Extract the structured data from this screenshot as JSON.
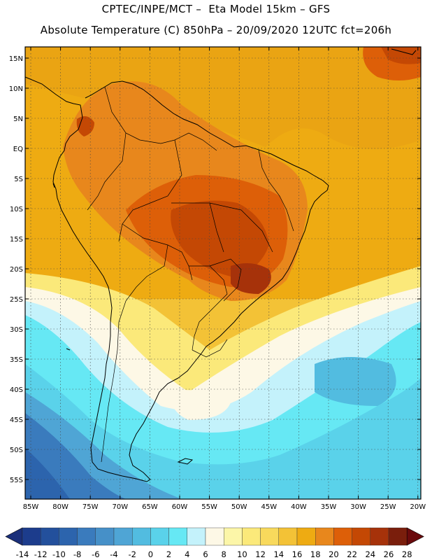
{
  "title_line1": "CPTEC/INPE/MCT –  Eta Model 15km – GFS",
  "title_line2": "Absolute Temperature (C) 850hPa – 20/09/2020 12UTC fct=206h",
  "lat_ticks": [
    "15N",
    "10N",
    "5N",
    "EQ",
    "5S",
    "10S",
    "15S",
    "20S",
    "25S",
    "30S",
    "35S",
    "40S",
    "45S",
    "50S",
    "55S"
  ],
  "lon_ticks": [
    "85W",
    "80W",
    "75W",
    "70W",
    "65W",
    "60W",
    "55W",
    "50W",
    "45W",
    "40W",
    "35W",
    "30W",
    "25W",
    "20W"
  ],
  "colorbar": {
    "labels": [
      "-14",
      "-12",
      "-10",
      "-8",
      "-6",
      "-4",
      "-2",
      "0",
      "2",
      "4",
      "6",
      "8",
      "10",
      "12",
      "14",
      "16",
      "18",
      "20",
      "22",
      "24",
      "26",
      "28"
    ],
    "colors": [
      "#1c3c8c",
      "#23509c",
      "#2c64ad",
      "#3a7bbd",
      "#4690c8",
      "#4fa5d5",
      "#52bce0",
      "#5ad2ea",
      "#66e8f4",
      "#c4f2fb",
      "#fdf8e6",
      "#fcf6a8",
      "#fbe97a",
      "#f8d95c",
      "#f3c236",
      "#eeab12",
      "#e8871c",
      "#dd5f08",
      "#c44804",
      "#a6320a",
      "#7a1e0c"
    ],
    "left_arrow": "#1a2f7a",
    "right_arrow": "#6a0a0c"
  }
}
